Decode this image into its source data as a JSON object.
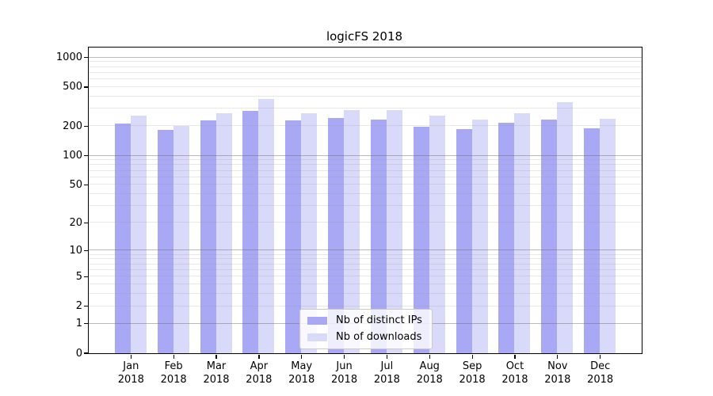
{
  "figure": {
    "background": "#ffffff"
  },
  "chart_data": {
    "type": "bar",
    "title": "logicFS 2018",
    "categories": [
      "Jan",
      "Feb",
      "Mar",
      "Apr",
      "May",
      "Jun",
      "Jul",
      "Aug",
      "Sep",
      "Oct",
      "Nov",
      "Dec"
    ],
    "x_year": "2018",
    "series": [
      {
        "name": "Nb of distinct IPs",
        "color": "#a8a8f4",
        "values": [
          210,
          180,
          228,
          283,
          228,
          240,
          231,
          197,
          184,
          214,
          231,
          189
        ]
      },
      {
        "name": "Nb of downloads",
        "color": "#d9d9f9",
        "values": [
          252,
          199,
          266,
          372,
          269,
          287,
          287,
          255,
          233,
          270,
          345,
          235
        ]
      }
    ],
    "y_axis": {
      "scale": "log1p",
      "ticks": [
        0,
        1,
        2,
        5,
        10,
        20,
        50,
        100,
        200,
        500,
        1000
      ],
      "range": [
        0,
        1250
      ],
      "major_gridlines": [
        1,
        10,
        100,
        1000
      ],
      "minor_gridlines": [
        2,
        3,
        4,
        5,
        6,
        7,
        8,
        9,
        20,
        30,
        40,
        50,
        60,
        70,
        80,
        90,
        200,
        300,
        400,
        500,
        600,
        700,
        800,
        900
      ]
    },
    "grid": {
      "visible": true,
      "position": "above-bars"
    },
    "legend": {
      "position": "lower-center"
    }
  }
}
